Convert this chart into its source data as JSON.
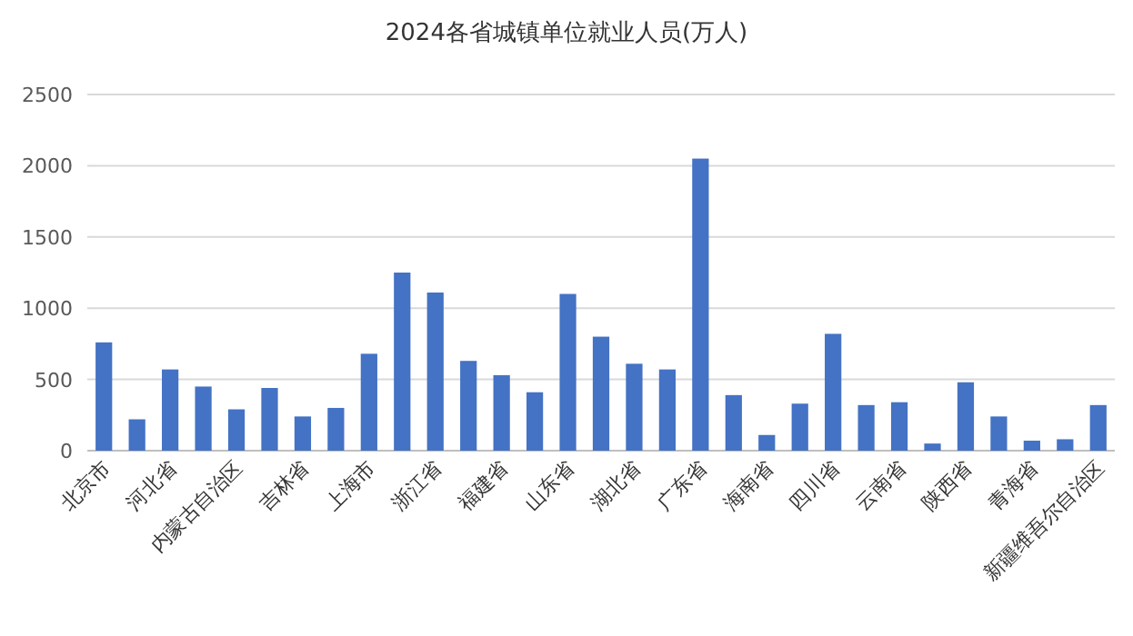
{
  "chart_data": {
    "type": "bar",
    "title": "2024各省城镇单位就业人员(万人)",
    "categories": [
      "北京市",
      null,
      "河北省",
      null,
      "内蒙古自治区",
      null,
      "吉林省",
      null,
      "上海市",
      null,
      "浙江省",
      null,
      "福建省",
      null,
      "山东省",
      null,
      "湖北省",
      null,
      "广东省",
      null,
      "海南省",
      null,
      "四川省",
      null,
      "云南省",
      null,
      "陕西省",
      null,
      "青海省",
      null,
      "新疆维吾尔自治区"
    ],
    "series": [
      {
        "color": "#4472c4",
        "values": [
          760,
          220,
          570,
          450,
          290,
          440,
          240,
          300,
          680,
          1250,
          1110,
          630,
          530,
          410,
          1100,
          800,
          610,
          570,
          2050,
          390,
          110,
          330,
          820,
          320,
          340,
          50,
          480,
          240,
          70,
          80,
          320
        ]
      }
    ],
    "ylim": [
      0,
      2500
    ],
    "yticks": [
      0,
      500,
      1000,
      1500,
      2000,
      2500
    ],
    "grid": "y"
  }
}
